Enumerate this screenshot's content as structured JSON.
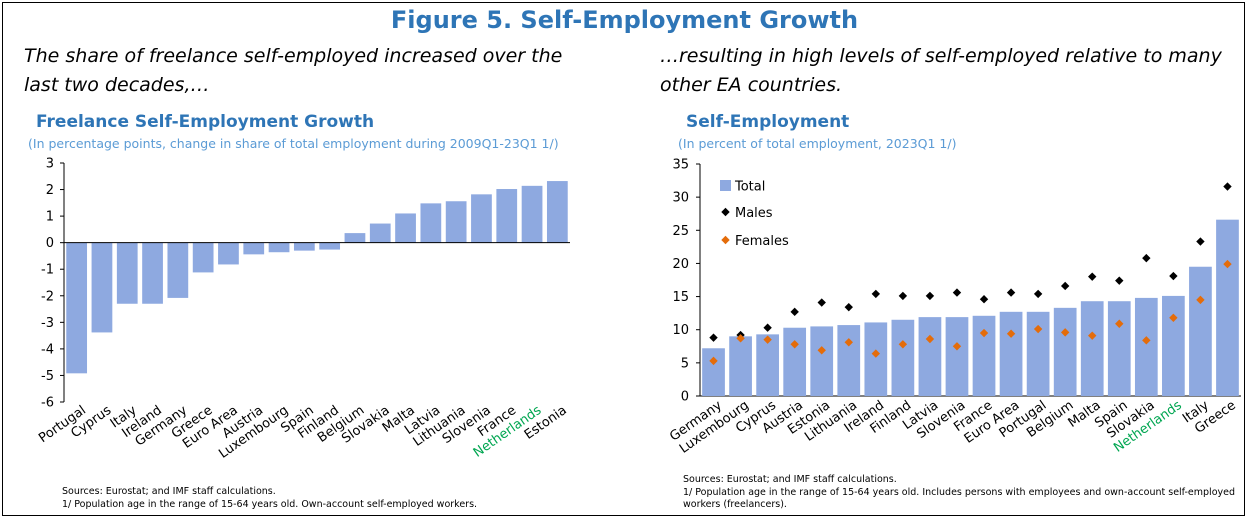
{
  "figure_title": "Figure 5. Self-Employment Growth",
  "left": {
    "subtitle": "The share of freelance self-employed increased over the last two decades,…",
    "chart_title": "Freelance Self-Employment Growth",
    "chart_subtitle": "(In percentage points, change in share of total employment during 2009Q1-23Q1 1/)",
    "sources": "Sources: Eurostat; and IMF staff calculations.",
    "footnote": "1/ Population age in the range of 15-64 years old. Own-account self-employed workers."
  },
  "right": {
    "subtitle": "…resulting in high levels of self-employed relative to many other EA countries.",
    "chart_title": "Self-Employment",
    "chart_subtitle": "(In percent of total employment, 2023Q1 1/)",
    "sources": "Sources: Eurostat; and IMF staff calculations.",
    "footnote": "1/ Population age in the range of 15-64 years old. Includes persons with employees and own-account self-employed workers (freelancers)."
  },
  "colors": {
    "bar": "#8ea9e0",
    "title_blue": "#2e75b6",
    "subtitle_blue": "#5b9bd5",
    "highlight": "#00a651",
    "males": "#000000",
    "females": "#e46c0a"
  },
  "chart_data": [
    {
      "type": "bar",
      "title": "Freelance Self-Employment Growth",
      "categories": [
        "Portugal",
        "Cyprus",
        "Italy",
        "Ireland",
        "Germany",
        "Greece",
        "Euro Area",
        "Austria",
        "Luxembourg",
        "Spain",
        "Finland",
        "Belgium",
        "Slovakia",
        "Malta",
        "Latvia",
        "Lithuania",
        "Slovenia",
        "France",
        "Netherlands",
        "Estonia"
      ],
      "values": [
        -4.92,
        -3.38,
        -2.3,
        -2.3,
        -2.08,
        -1.12,
        -0.82,
        -0.44,
        -0.36,
        -0.3,
        -0.26,
        0.36,
        0.72,
        1.1,
        1.48,
        1.56,
        1.82,
        2.02,
        2.14,
        2.32
      ],
      "highlight_category": "Netherlands",
      "ylim": [
        -6,
        3
      ],
      "yticks": [
        -6,
        -5,
        -4,
        -3,
        -2,
        -1,
        0,
        1,
        2,
        3
      ],
      "grid": false
    },
    {
      "type": "bar",
      "title": "Self-Employment",
      "categories": [
        "Germany",
        "Luxembourg",
        "Cyprus",
        "Austria",
        "Estonia",
        "Lithuania",
        "Ireland",
        "Finland",
        "Latvia",
        "Slovenia",
        "France",
        "Euro Area",
        "Portugal",
        "Belgium",
        "Malta",
        "Spain",
        "Slovakia",
        "Netherlands",
        "Italy",
        "Greece"
      ],
      "highlight_category": "Netherlands",
      "series": [
        {
          "name": "Total",
          "type": "bar",
          "values": [
            7.2,
            9.0,
            9.3,
            10.3,
            10.5,
            10.7,
            11.1,
            11.5,
            11.9,
            11.9,
            12.1,
            12.7,
            12.7,
            13.3,
            14.3,
            14.3,
            14.8,
            15.1,
            19.5,
            26.6
          ]
        },
        {
          "name": "Males",
          "type": "scatter",
          "values": [
            8.8,
            9.2,
            10.3,
            12.7,
            14.1,
            13.4,
            15.4,
            15.1,
            15.1,
            15.6,
            14.6,
            15.6,
            15.4,
            16.6,
            18.0,
            17.4,
            20.8,
            18.1,
            23.3,
            31.6
          ]
        },
        {
          "name": "Females",
          "type": "scatter",
          "values": [
            5.3,
            8.7,
            8.5,
            7.8,
            6.9,
            8.1,
            6.4,
            7.8,
            8.6,
            7.5,
            9.5,
            9.4,
            10.1,
            9.6,
            9.1,
            10.9,
            8.4,
            11.8,
            14.5,
            19.9
          ]
        }
      ],
      "ylim": [
        0,
        35
      ],
      "yticks": [
        0,
        5,
        10,
        15,
        20,
        25,
        30,
        35
      ],
      "legend": "top-left",
      "grid": false
    }
  ]
}
